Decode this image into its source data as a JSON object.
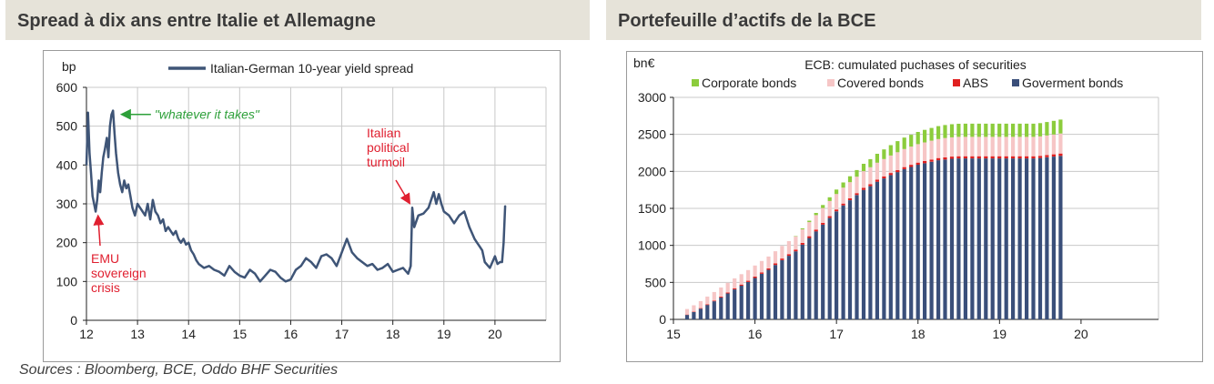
{
  "titles": {
    "left": "Spread à dix ans entre Italie et Allemagne",
    "right": "Portefeuille d’actifs de la BCE"
  },
  "source": "Sources : Bloomberg, BCE, Oddo BHF Securities",
  "colors": {
    "spread_line": "#3f5577",
    "annotation_red": "#e02030",
    "annotation_green": "#2ea03a",
    "gov_bonds": "#3a4f7a",
    "abs": "#e02020",
    "covered_bonds": "#f6c6c6",
    "corporate_bonds": "#8ccc3c",
    "grid": "#c8c8c8"
  },
  "chart_data": [
    {
      "type": "line",
      "unit_label": "bp",
      "xlim": [
        12,
        21
      ],
      "ylim": [
        0,
        600
      ],
      "xticks": [
        "12",
        "13",
        "14",
        "15",
        "16",
        "17",
        "18",
        "19",
        "20"
      ],
      "yticks": [
        "0",
        "100",
        "200",
        "300",
        "400",
        "500",
        "600"
      ],
      "series": [
        {
          "name": "Italian-German 10-year yield spread",
          "x": [
            12.0,
            12.03,
            12.06,
            12.09,
            12.12,
            12.15,
            12.18,
            12.21,
            12.24,
            12.27,
            12.3,
            12.33,
            12.36,
            12.4,
            12.43,
            12.46,
            12.49,
            12.52,
            12.55,
            12.58,
            12.62,
            12.66,
            12.7,
            12.74,
            12.78,
            12.82,
            12.86,
            12.9,
            12.95,
            13.0,
            13.05,
            13.1,
            13.15,
            13.2,
            13.25,
            13.3,
            13.35,
            13.4,
            13.45,
            13.5,
            13.55,
            13.6,
            13.65,
            13.7,
            13.75,
            13.8,
            13.85,
            13.9,
            13.95,
            14.0,
            14.05,
            14.1,
            14.15,
            14.2,
            14.3,
            14.4,
            14.5,
            14.6,
            14.7,
            14.8,
            14.9,
            15.0,
            15.1,
            15.2,
            15.3,
            15.4,
            15.5,
            15.6,
            15.7,
            15.8,
            15.9,
            16.0,
            16.1,
            16.2,
            16.3,
            16.4,
            16.5,
            16.6,
            16.7,
            16.8,
            16.9,
            17.0,
            17.1,
            17.2,
            17.3,
            17.4,
            17.5,
            17.6,
            17.7,
            17.8,
            17.9,
            18.0,
            18.1,
            18.2,
            18.3,
            18.35,
            18.38,
            18.42,
            18.5,
            18.6,
            18.7,
            18.8,
            18.85,
            18.9,
            18.95,
            19.0,
            19.1,
            19.2,
            19.3,
            19.4,
            19.5,
            19.6,
            19.65,
            19.7,
            19.75,
            19.8,
            19.9,
            20.0,
            20.05,
            20.1,
            20.14,
            20.17,
            20.2
          ],
          "values": [
            400,
            535,
            430,
            380,
            320,
            300,
            280,
            310,
            360,
            330,
            380,
            420,
            440,
            470,
            420,
            500,
            530,
            540,
            480,
            430,
            380,
            350,
            330,
            360,
            340,
            350,
            320,
            290,
            270,
            300,
            290,
            280,
            270,
            300,
            260,
            310,
            280,
            270,
            250,
            260,
            230,
            240,
            230,
            220,
            230,
            210,
            200,
            210,
            195,
            200,
            180,
            170,
            155,
            145,
            135,
            140,
            130,
            125,
            115,
            140,
            125,
            115,
            110,
            130,
            120,
            100,
            115,
            130,
            125,
            110,
            100,
            105,
            130,
            140,
            160,
            150,
            135,
            165,
            170,
            160,
            140,
            175,
            210,
            175,
            160,
            150,
            140,
            145,
            130,
            135,
            145,
            125,
            130,
            135,
            120,
            140,
            290,
            240,
            270,
            275,
            290,
            330,
            300,
            325,
            300,
            280,
            270,
            250,
            270,
            280,
            240,
            210,
            200,
            190,
            180,
            150,
            135,
            165,
            145,
            150,
            150,
            200,
            295
          ]
        }
      ],
      "annotations": [
        {
          "text": "\"whatever it takes\"",
          "color": "green",
          "x": 12.55,
          "y": 535
        },
        {
          "text": [
            "Italian",
            "political",
            "turmoil"
          ],
          "color": "red",
          "x": 18.3,
          "y": 290
        },
        {
          "text": [
            "EMU",
            "sovereign",
            "crisis"
          ],
          "color": "red",
          "x": 12.3,
          "y": 280
        }
      ]
    },
    {
      "type": "bar",
      "stacked": true,
      "title": "ECB: cumulated puchases of securities",
      "unit_label": "bn€",
      "xlim": [
        15,
        20.95
      ],
      "ylim": [
        0,
        3000
      ],
      "xticks": [
        "15",
        "16",
        "17",
        "18",
        "19",
        "20"
      ],
      "yticks": [
        "0",
        "500",
        "1000",
        "1500",
        "2000",
        "2500",
        "3000"
      ],
      "legend": [
        "Corporate bonds",
        "Covered bonds",
        "ABS",
        "Goverment bonds"
      ],
      "months_from": 15.167,
      "month_step": 0.0833,
      "series": [
        {
          "name": "Goverment bonds",
          "values": [
            60,
            100,
            145,
            195,
            245,
            295,
            350,
            405,
            455,
            505,
            560,
            615,
            670,
            735,
            800,
            860,
            920,
            1010,
            1100,
            1190,
            1280,
            1370,
            1460,
            1540,
            1610,
            1680,
            1750,
            1800,
            1860,
            1905,
            1950,
            1990,
            2030,
            2060,
            2090,
            2110,
            2130,
            2150,
            2160,
            2170,
            2175,
            2175,
            2175,
            2175,
            2175,
            2175,
            2175,
            2175,
            2175,
            2175,
            2175,
            2175,
            2180,
            2190,
            2200,
            2210
          ]
        },
        {
          "name": "ABS",
          "values": [
            5,
            5,
            7,
            8,
            10,
            12,
            14,
            15,
            16,
            17,
            18,
            19,
            20,
            21,
            22,
            22,
            23,
            23,
            24,
            24,
            25,
            25,
            25,
            25,
            26,
            26,
            27,
            27,
            27,
            28,
            28,
            28,
            28,
            29,
            29,
            29,
            30,
            30,
            30,
            30,
            30,
            30,
            30,
            30,
            30,
            30,
            30,
            30,
            30,
            30,
            30,
            30,
            30,
            30,
            30,
            32
          ]
        },
        {
          "name": "Covered bonds",
          "values": [
            75,
            85,
            95,
            105,
            115,
            125,
            130,
            135,
            140,
            145,
            150,
            155,
            160,
            165,
            170,
            175,
            180,
            185,
            190,
            195,
            200,
            205,
            210,
            215,
            218,
            222,
            225,
            228,
            231,
            234,
            237,
            240,
            243,
            246,
            249,
            252,
            255,
            258,
            260,
            260,
            262,
            262,
            262,
            262,
            262,
            262,
            262,
            262,
            262,
            262,
            262,
            262,
            262,
            265,
            268,
            270
          ]
        },
        {
          "name": "Corporate bonds",
          "values": [
            0,
            0,
            0,
            0,
            0,
            0,
            0,
            0,
            0,
            0,
            0,
            0,
            0,
            0,
            0,
            0,
            5,
            12,
            20,
            30,
            40,
            50,
            60,
            70,
            80,
            90,
            100,
            110,
            120,
            130,
            140,
            150,
            155,
            160,
            165,
            170,
            172,
            174,
            176,
            177,
            177,
            178,
            178,
            178,
            178,
            178,
            178,
            178,
            178,
            178,
            178,
            178,
            180,
            182,
            185,
            188
          ]
        }
      ]
    }
  ]
}
